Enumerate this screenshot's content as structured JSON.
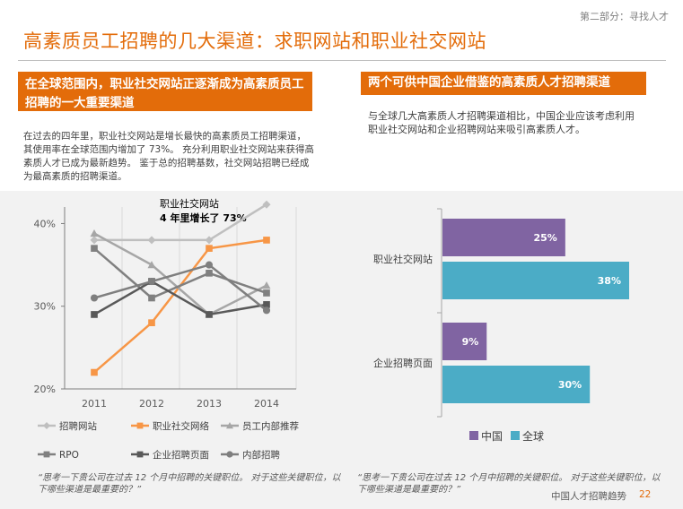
{
  "header": {
    "section_label": "第二部分：寻找人才",
    "title": "高素质员工招聘的几大渠道：求职网站和职业社交网站"
  },
  "left_panel": {
    "heading": "在全球范围内，职业社交网站正逐渐成为高素质员工招聘的一大重要渠道",
    "heading_line1": "在全球范围内，职业社交网站正逐渐成为高素质员工",
    "heading_line2": "招聘的一大重要渠道",
    "paragraph_lines": [
      "在过去的四年里，职业社交网站是增长最快的高素质员工招聘渠道，",
      "其使用率在全球范围内增加了 73%。 充分利用职业社交网站来获得高",
      "素质人才已成为最新趋势。 鉴于总的招聘基数，社交网站招聘已经成",
      "为最高素质的招聘渠道。"
    ]
  },
  "right_panel": {
    "heading": "两个可供中国企业借鉴的高素质人才招聘渠道",
    "paragraph_lines": [
      "与全球几大高素质人才招聘渠道相比，中国企业应该考虑利用",
      "职业社交网站和企业招聘网站来吸引高素质人才。"
    ]
  },
  "chart_data": [
    {
      "type": "line",
      "x": [
        "2011",
        "2012",
        "2013",
        "2014"
      ],
      "ylim": [
        20,
        42
      ],
      "yticks": [
        "20%",
        "30%",
        "40%"
      ],
      "ytick_values": [
        20,
        30,
        40
      ],
      "annotation_line1": "职业社交网站",
      "annotation_line2": "4 年里增长了 73%",
      "series": [
        {
          "name": "招聘网站",
          "values": [
            38,
            38,
            38,
            42.3
          ],
          "color": "#bfbfbf",
          "marker": "diamond"
        },
        {
          "name": "职业社交网络",
          "values": [
            22,
            28,
            37,
            38
          ],
          "color": "#f79646",
          "marker": "square"
        },
        {
          "name": "员工内部推荐",
          "values": [
            38.8,
            35,
            29,
            32.5
          ],
          "color": "#a6a6a6",
          "marker": "triangle"
        },
        {
          "name": "RPO",
          "values": [
            37,
            31,
            34,
            31.6
          ],
          "color": "#808080",
          "marker": "square"
        },
        {
          "name": "企业招聘页面",
          "values": [
            29,
            33,
            29,
            30.2
          ],
          "color": "#595959",
          "marker": "square"
        },
        {
          "name": "内部招聘",
          "values": [
            31,
            33,
            35,
            29.5
          ],
          "color": "#7f7f7f",
          "marker": "circle"
        }
      ]
    },
    {
      "type": "bar",
      "orientation": "horizontal",
      "categories": [
        "职业社交网站",
        "企业招聘页面"
      ],
      "xlim": [
        0,
        45
      ],
      "series": [
        {
          "name": "中国",
          "values": [
            25,
            9
          ],
          "color": "#8064a2"
        },
        {
          "name": "全球",
          "values": [
            38,
            30
          ],
          "color": "#4bacc6"
        }
      ],
      "data_labels": [
        [
          "25%",
          "38%"
        ],
        [
          "9%",
          "30%"
        ]
      ]
    }
  ],
  "quotes": {
    "left_line1": "“思考一下贵公司在过去 12 个月中招聘的关键职位。 对于这些关键职位，以",
    "left_line2": "下哪些渠道是最重要的？”",
    "right_line1": "“思考一下贵公司在过去 12 个月中招聘的关键职位。 对于这些关键职位，以",
    "right_line2": "下哪些渠道是最重要的？”"
  },
  "footer": {
    "text": "中国人才招聘趋势",
    "page_number": "22"
  },
  "colors": {
    "accent": "#e36c0a",
    "band": "#f2f2f2"
  }
}
